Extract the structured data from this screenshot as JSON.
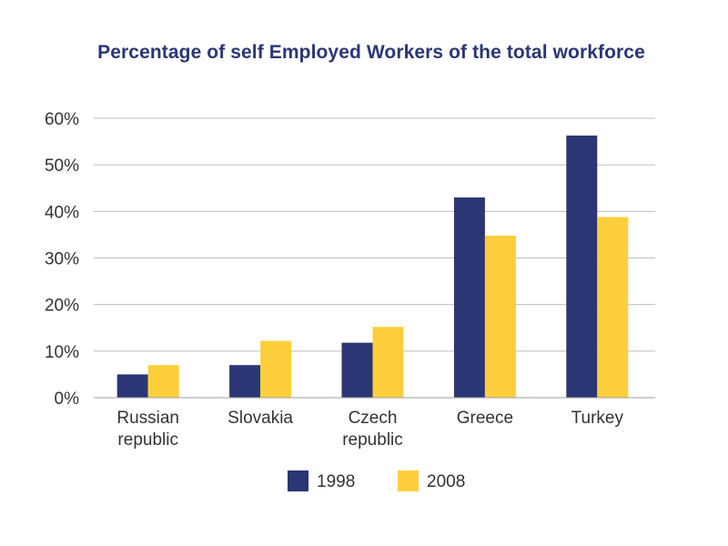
{
  "chart_data": {
    "type": "bar",
    "title": "Percentage of self Employed Workers of the total workforce",
    "xlabel": "",
    "ylabel": "",
    "categories": [
      [
        "Russian",
        "republic"
      ],
      [
        "Slovakia"
      ],
      [
        "Czech",
        "republic"
      ],
      [
        "Greece"
      ],
      [
        "Turkey"
      ]
    ],
    "series": [
      {
        "name": "1998",
        "color": "#2b3674",
        "values": [
          5,
          7,
          11.8,
          43,
          56.3
        ]
      },
      {
        "name": "2008",
        "color": "#fecf3c",
        "values": [
          7,
          12.2,
          15.2,
          34.8,
          38.8
        ]
      }
    ],
    "ylim": [
      0,
      60
    ],
    "yticks": [
      "0%",
      "10%",
      "20%",
      "30%",
      "40%",
      "50%",
      "60%"
    ],
    "grid": true,
    "legend_position": "bottom-center"
  }
}
